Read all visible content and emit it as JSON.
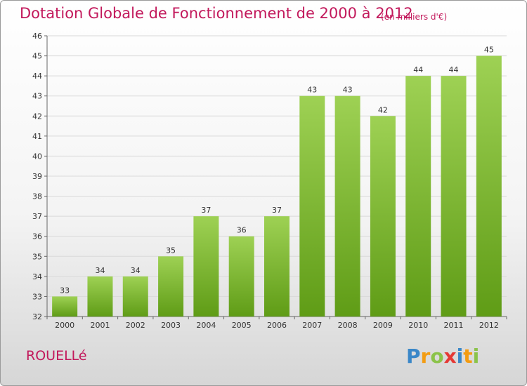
{
  "header": {
    "title": "Dotation Globale de Fonctionnement de 2000 à 2012",
    "subtitle": "(en milliers d'€)"
  },
  "footer": {
    "commune": "ROUELLé",
    "logo_text": "Proxiti"
  },
  "colors": {
    "title": "#c2185b",
    "bar_top": "#9ed154",
    "bar_bottom": "#5f9c16",
    "grid": "#d9d9d9"
  },
  "chart_data": {
    "type": "bar",
    "title": "Dotation Globale de Fonctionnement de 2000 à 2012",
    "subtitle": "(en milliers d'€)",
    "xlabel": "",
    "ylabel": "",
    "categories": [
      "2000",
      "2001",
      "2002",
      "2003",
      "2004",
      "2005",
      "2006",
      "2007",
      "2008",
      "2009",
      "2010",
      "2011",
      "2012"
    ],
    "values": [
      33,
      34,
      34,
      35,
      37,
      36,
      37,
      43,
      43,
      42,
      44,
      44,
      45
    ],
    "data_labels": [
      "33",
      "34",
      "34",
      "35",
      "37",
      "36",
      "37",
      "43",
      "43",
      "42",
      "44",
      "44",
      "45"
    ],
    "ylim": [
      32,
      46
    ],
    "yticks": [
      32,
      33,
      34,
      35,
      36,
      37,
      38,
      39,
      40,
      41,
      42,
      43,
      44,
      45,
      46
    ],
    "grid": true,
    "legend": "none"
  }
}
